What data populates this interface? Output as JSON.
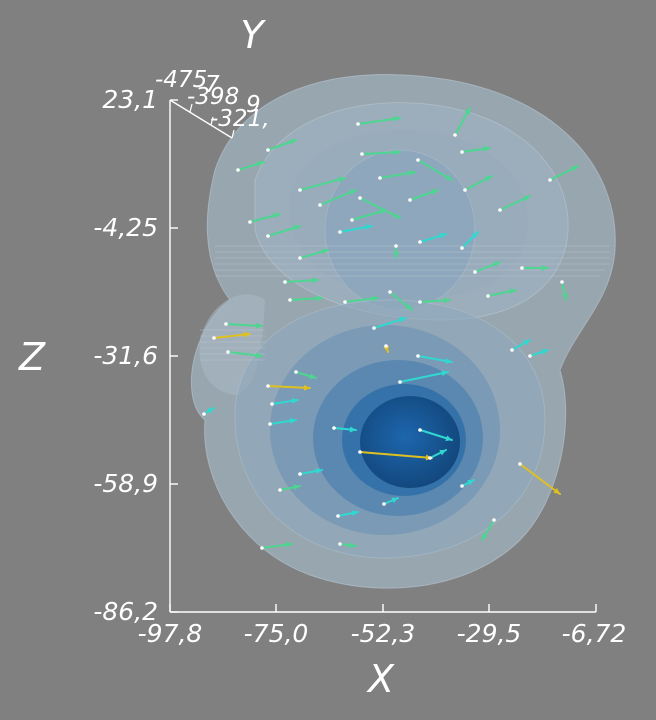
{
  "axes": {
    "x_title": "X",
    "y_title": "Y",
    "z_title": "Z"
  },
  "x_ticks": [
    "-97,8",
    "-75,0",
    "-52,3",
    "-29,5",
    "-6,72"
  ],
  "z_ticks": [
    "23,1",
    "-4,25",
    "-31,6",
    "-58,9",
    "-86,2"
  ],
  "y_ticks": [
    "-475",
    "-398",
    "-321,"
  ],
  "y_ticks_overlap": [
    "7",
    "9"
  ],
  "colors": {
    "background": "#808080",
    "shell_outer": "#9fb5c6",
    "shell_inner": "#2f78b8",
    "core": "#1a5c9c",
    "arrow_green": "#4cd690",
    "arrow_yellow": "#e0c020",
    "arrow_cyan": "#30d8d0"
  }
}
